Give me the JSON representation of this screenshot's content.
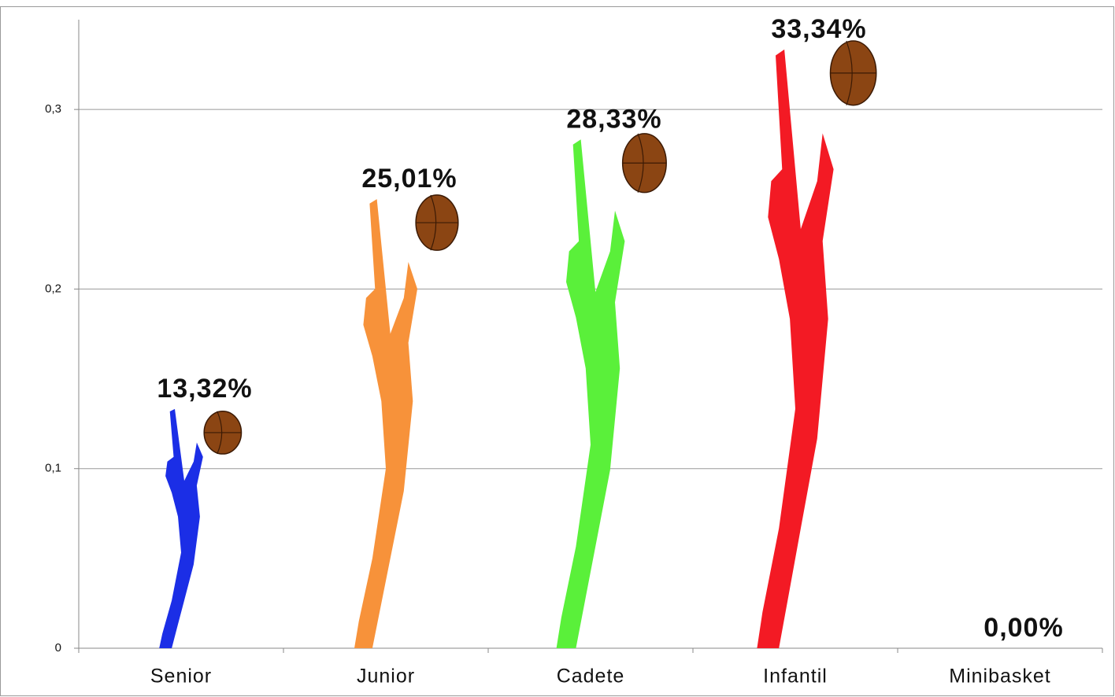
{
  "chart_data": {
    "type": "pictograph",
    "categories": [
      "Senior",
      "Junior",
      "Cadete",
      "Infantil",
      "Minibasket"
    ],
    "values": [
      0.1332,
      0.2501,
      0.2833,
      0.3334,
      0
    ],
    "value_labels": [
      "13,32%",
      "25,01%",
      "28,33%",
      "33,34%",
      "0,00%"
    ],
    "colors": [
      "#1b2ee6",
      "#f7923a",
      "#5af03a",
      "#f31a24",
      "#888888"
    ],
    "ylim": [
      0,
      0.35
    ],
    "yticks": [
      0,
      {
        "value": 0.1,
        "label": "0,1"
      },
      {
        "value": 0.2,
        "label": "0,2"
      },
      {
        "value": 0.3,
        "label": "0,3"
      }
    ],
    "grid": true
  }
}
